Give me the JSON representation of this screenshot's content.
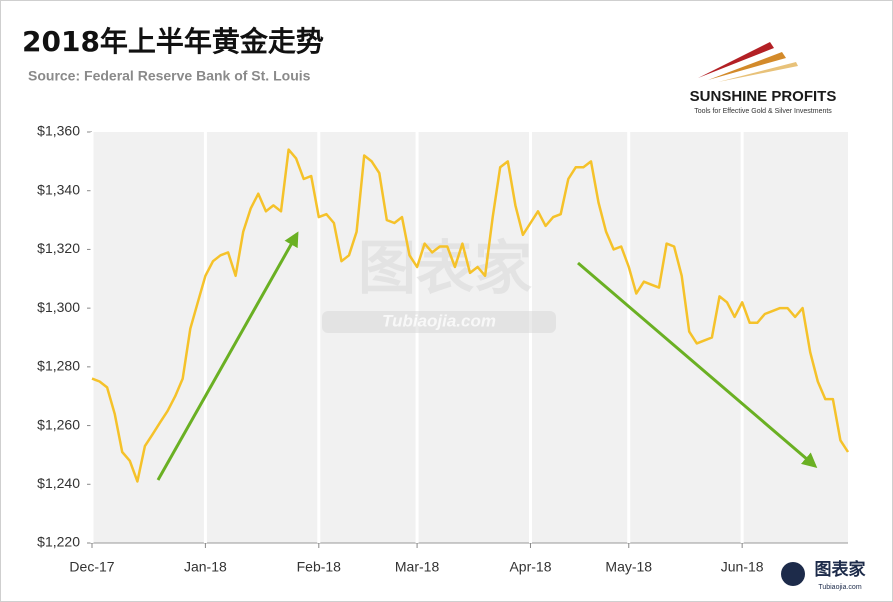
{
  "chart_data": {
    "type": "line",
    "title": "2018年上半年黄金走势",
    "subtitle": "Source: Federal Reserve Bank of St. Louis",
    "categories": [
      "Dec-17",
      null,
      null,
      null,
      null,
      null,
      null,
      null,
      null,
      null,
      null,
      null,
      null,
      null,
      null,
      "Jan-18",
      null,
      null,
      null,
      null,
      null,
      null,
      null,
      null,
      null,
      null,
      null,
      null,
      null,
      null,
      "Feb-18",
      null,
      null,
      null,
      null,
      null,
      null,
      null,
      null,
      null,
      null,
      null,
      null,
      "Mar-18",
      null,
      null,
      null,
      null,
      null,
      null,
      null,
      null,
      null,
      null,
      null,
      null,
      null,
      null,
      "Apr-18",
      null,
      null,
      null,
      null,
      null,
      null,
      null,
      null,
      null,
      null,
      null,
      null,
      "May-18",
      null,
      null,
      null,
      null,
      null,
      null,
      null,
      null,
      null,
      null,
      null,
      null,
      null,
      null,
      "Jun-18",
      null,
      null,
      null,
      null,
      null,
      null,
      null,
      null,
      null,
      null,
      null,
      null,
      null,
      null
    ],
    "values": [
      1276,
      1275,
      1273,
      1264,
      1251,
      1248,
      1241,
      1253,
      1257,
      1261,
      1265,
      1270,
      1276,
      1293,
      1302,
      1311,
      1316,
      1318,
      1319,
      1311,
      1326,
      1334,
      1339,
      1333,
      1335,
      1333,
      1354,
      1351,
      1344,
      1345,
      1331,
      1332,
      1329,
      1316,
      1318,
      1326,
      1352,
      1350,
      1346,
      1330,
      1329,
      1331,
      1318,
      1314,
      1322,
      1319,
      1321,
      1321,
      1314,
      1322,
      1312,
      1314,
      1311,
      1331,
      1348,
      1350,
      1335,
      1325,
      1329,
      1333,
      1328,
      1331,
      1332,
      1344,
      1348,
      1348,
      1350,
      1336,
      1326,
      1320,
      1321,
      1314,
      1305,
      1309,
      1308,
      1307,
      1322,
      1321,
      1311,
      1292,
      1288,
      1289,
      1290,
      1304,
      1302,
      1297,
      1302,
      1295,
      1295,
      1298,
      1299,
      1300,
      1300,
      1297,
      1300,
      1285,
      1275,
      1269,
      1269,
      1255,
      1251
    ],
    "color": "#f5c22a",
    "ylim": [
      1220,
      1360
    ],
    "yticks": [
      {
        "value": 1220,
        "label": "$1,220"
      },
      {
        "value": 1240,
        "label": "$1,240"
      },
      {
        "value": 1260,
        "label": "$1,260"
      },
      {
        "value": 1280,
        "label": "$1,280"
      },
      {
        "value": 1300,
        "label": "$1,300"
      },
      {
        "value": 1320,
        "label": "$1,320"
      },
      {
        "value": 1340,
        "label": "$1,340"
      },
      {
        "value": 1360,
        "label": "$1,360"
      }
    ],
    "grid": "x"
  },
  "logo": {
    "name": "SUNSHINE PROFITS",
    "tagline": "Tools for Effective Gold & Silver Investments"
  },
  "watermark": {
    "name": "图表家",
    "site": "Tubiaojia.com"
  }
}
